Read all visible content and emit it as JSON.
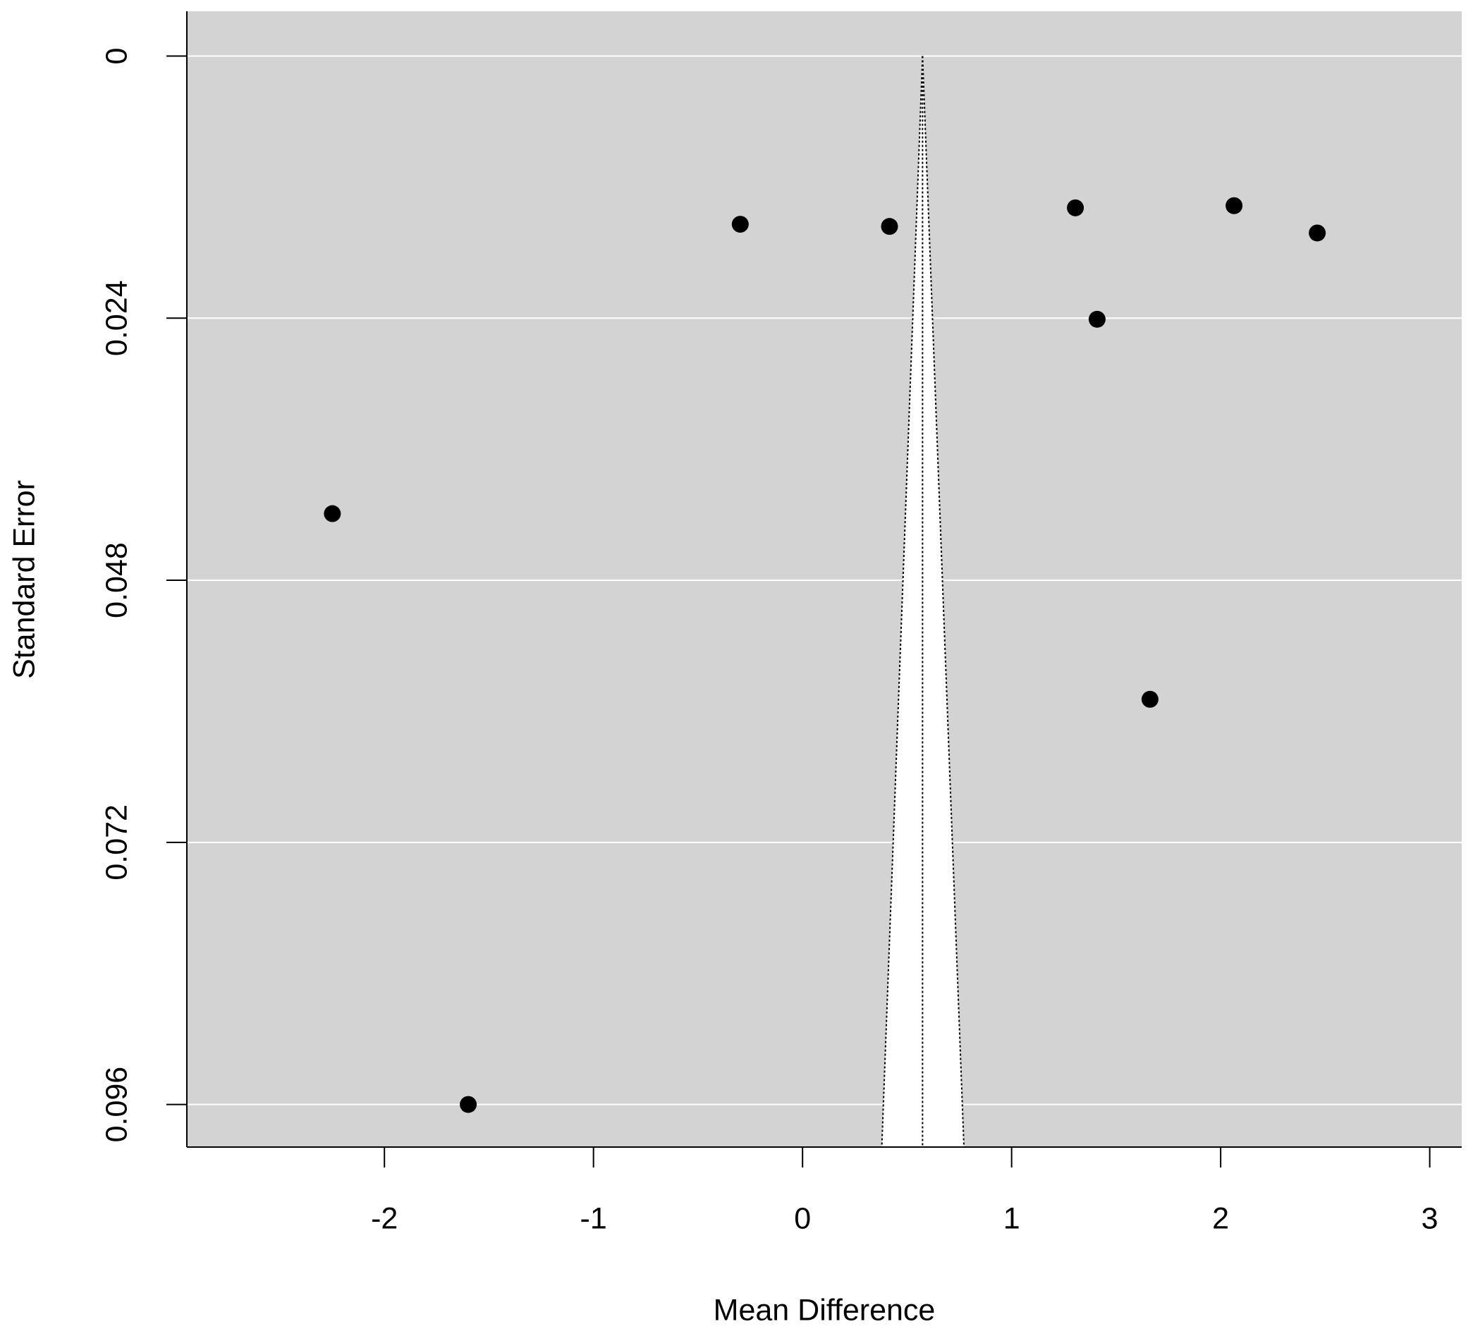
{
  "chart_data": {
    "type": "funnel-scatter",
    "xlabel": "Mean Difference",
    "ylabel": "Standard Error",
    "x": [
      -0.298,
      0.416,
      1.305,
      2.064,
      2.462,
      1.409,
      -2.249,
      1.662,
      -1.599
    ],
    "values": [
      0.0154,
      0.0156,
      0.0139,
      0.0137,
      0.0162,
      0.0241,
      0.0419,
      0.0589,
      0.096
    ],
    "color": "#000000",
    "xlim": [
      -2.945,
      3.153
    ],
    "xticks": [
      -2,
      -1,
      0,
      1,
      2,
      3
    ],
    "ylim": [
      -0.0041,
      0.0999
    ],
    "yticks": [
      0,
      0.024,
      0.048,
      0.072,
      0.096
    ],
    "y_reversed": true,
    "grid": true,
    "funnel": {
      "center": 0.574,
      "se_top": 0,
      "bounds_at_bottom": [
        0.379,
        0.772
      ]
    }
  }
}
